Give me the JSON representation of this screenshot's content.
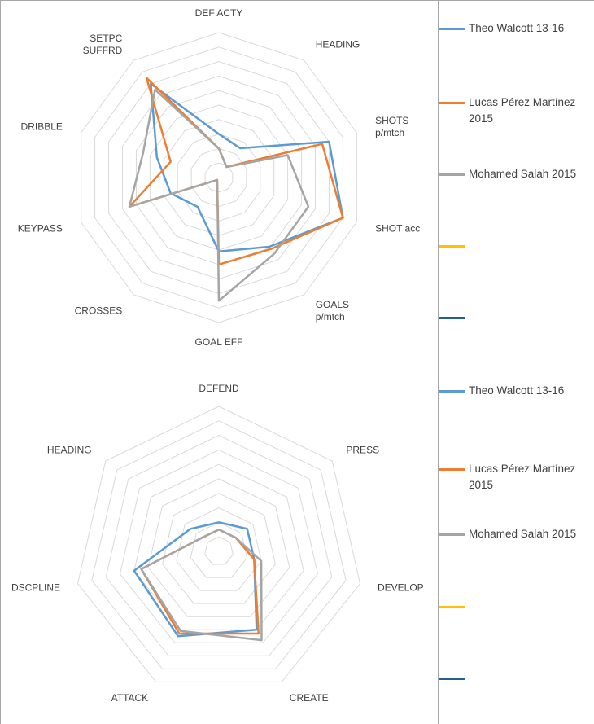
{
  "chart_data": [
    {
      "type": "radar",
      "axes": [
        "DEF ACTY",
        "HEADING",
        "SHOTS\np/mtch",
        "SHOT acc",
        "GOALS\np/mtch",
        "GOAL EFF",
        "CROSSES",
        "KEYPASS",
        "DRIBBLE",
        "SETPC\nSUFFRD"
      ],
      "rlim": [
        0,
        10
      ],
      "rings": 10,
      "grid": true,
      "legend_position": "right",
      "series": [
        {
          "name": "Theo Walcott 13-16",
          "color": "#5b9bd5",
          "values": [
            3.0,
            2.5,
            8.0,
            9.0,
            5.9,
            5.1,
            2.5,
            3.5,
            4.5,
            8.0
          ]
        },
        {
          "name": "Lucas Pérez Martínez 2015",
          "color": "#ed7d31",
          "values": [
            2.0,
            0.9,
            7.5,
            9.0,
            6.1,
            6.0,
            0.2,
            6.5,
            3.5,
            8.5
          ]
        },
        {
          "name": "Mohamed Salah 2015",
          "color": "#a5a5a5",
          "values": [
            2.0,
            0.9,
            5.0,
            6.5,
            6.5,
            8.5,
            0.2,
            6.5,
            5.5,
            7.5
          ]
        },
        {
          "name": "",
          "color": "#ffc000",
          "values": []
        },
        {
          "name": "",
          "color": "#255e91",
          "values": []
        }
      ]
    },
    {
      "type": "radar",
      "axes": [
        "DEFEND",
        "PRESS",
        "DEVELOP",
        "CREATE",
        "ATTACK",
        "DSCPLINE",
        "HEADING"
      ],
      "rlim": [
        0,
        10
      ],
      "rings": 10,
      "grid": true,
      "legend_position": "right",
      "series": [
        {
          "name": "Theo Walcott 13-16",
          "color": "#5b9bd5",
          "values": [
            2.0,
            2.5,
            2.5,
            6.0,
            6.5,
            6.0,
            2.5
          ]
        },
        {
          "name": "Lucas Pérez Martínez 2015",
          "color": "#ed7d31",
          "values": [
            1.5,
            1.5,
            2.5,
            6.3,
            6.3,
            5.5,
            1.5
          ]
        },
        {
          "name": "Mohamed Salah 2015",
          "color": "#a5a5a5",
          "values": [
            1.5,
            1.5,
            3.0,
            6.8,
            6.1,
            5.5,
            1.5
          ]
        },
        {
          "name": "",
          "color": "#ffc000",
          "values": []
        },
        {
          "name": "",
          "color": "#255e91",
          "values": []
        }
      ]
    }
  ]
}
